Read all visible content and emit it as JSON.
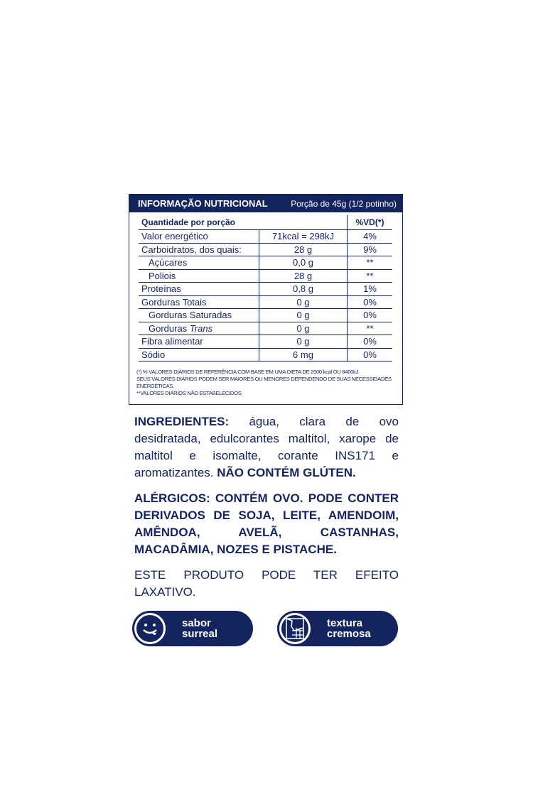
{
  "table": {
    "title": "INFORMAÇÃO NUTRICIONAL",
    "portion": "Porção de 45g (1/2 potinho)",
    "col_header": "Quantidade por porção",
    "vd_header": "%VD(*)",
    "rows": [
      {
        "name": "Valor energético",
        "value": "71kcal = 298kJ",
        "vd": "4%"
      },
      {
        "name": "Carboidratos, dos quais:",
        "value": "28 g",
        "vd": "9%"
      },
      {
        "name": "Açúcares",
        "value": "0,0 g",
        "vd": "**"
      },
      {
        "name": "Poliois",
        "value": "28 g",
        "vd": "**"
      },
      {
        "name": "Proteínas",
        "value": "0,8 g",
        "vd": "1%"
      },
      {
        "name": "Gorduras Totais",
        "value": "0 g",
        "vd": "0%"
      },
      {
        "name": "Gorduras Saturadas",
        "value": "0 g",
        "vd": "0%"
      },
      {
        "name": "Gorduras",
        "name_italic": "Trans",
        "value": "0 g",
        "vd": "**"
      },
      {
        "name": "Fibra alimentar",
        "value": "0 g",
        "vd": "0%"
      },
      {
        "name": "Sódio",
        "value": "6 mg",
        "vd": "0%"
      }
    ],
    "footnotes": [
      "(*) % VALORES DIÁRIOS DE REFERÊNCIA COM BASE EM UMA DIETA DE 2000 kcal OU 8400kJ.",
      "SEUS VALORES DIÁRIOS PODEM SER MAIORES OU MENORES DEPENDENDO DE SUAS NECESSIDADES ENERGÉTICAS.",
      "**VALORES DIÁRIOS NÃO ESTABELECIDOS."
    ]
  },
  "ingredients": {
    "label": "INGREDIENTES:",
    "text": " água, clara de ovo desidratada, edulcorantes maltitol, xarope de maltitol e isomalte, corante INS171 e aromatizantes. ",
    "gluten": "NÃO CONTÉM GLÚTEN."
  },
  "allergens": "ALÉRGICOS: CONTÉM OVO. PODE CONTER DERIVADOS DE SOJA, LEITE, AMENDOIM, AMÊNDOA, AVELÃ, CASTANHAS, MACADÂMIA, NOZES E PISTACHE.",
  "laxative": "ESTE PRODUTO PODE TER EFEITO LAXATIVO.",
  "badges": [
    {
      "line1": "sabor",
      "line2": "surreal",
      "icon": "smiley-tongue-icon"
    },
    {
      "line1": "textura",
      "line2": "cremosa",
      "icon": "chocolate-bar-icon"
    }
  ],
  "colors": {
    "navy": "#14245e"
  }
}
